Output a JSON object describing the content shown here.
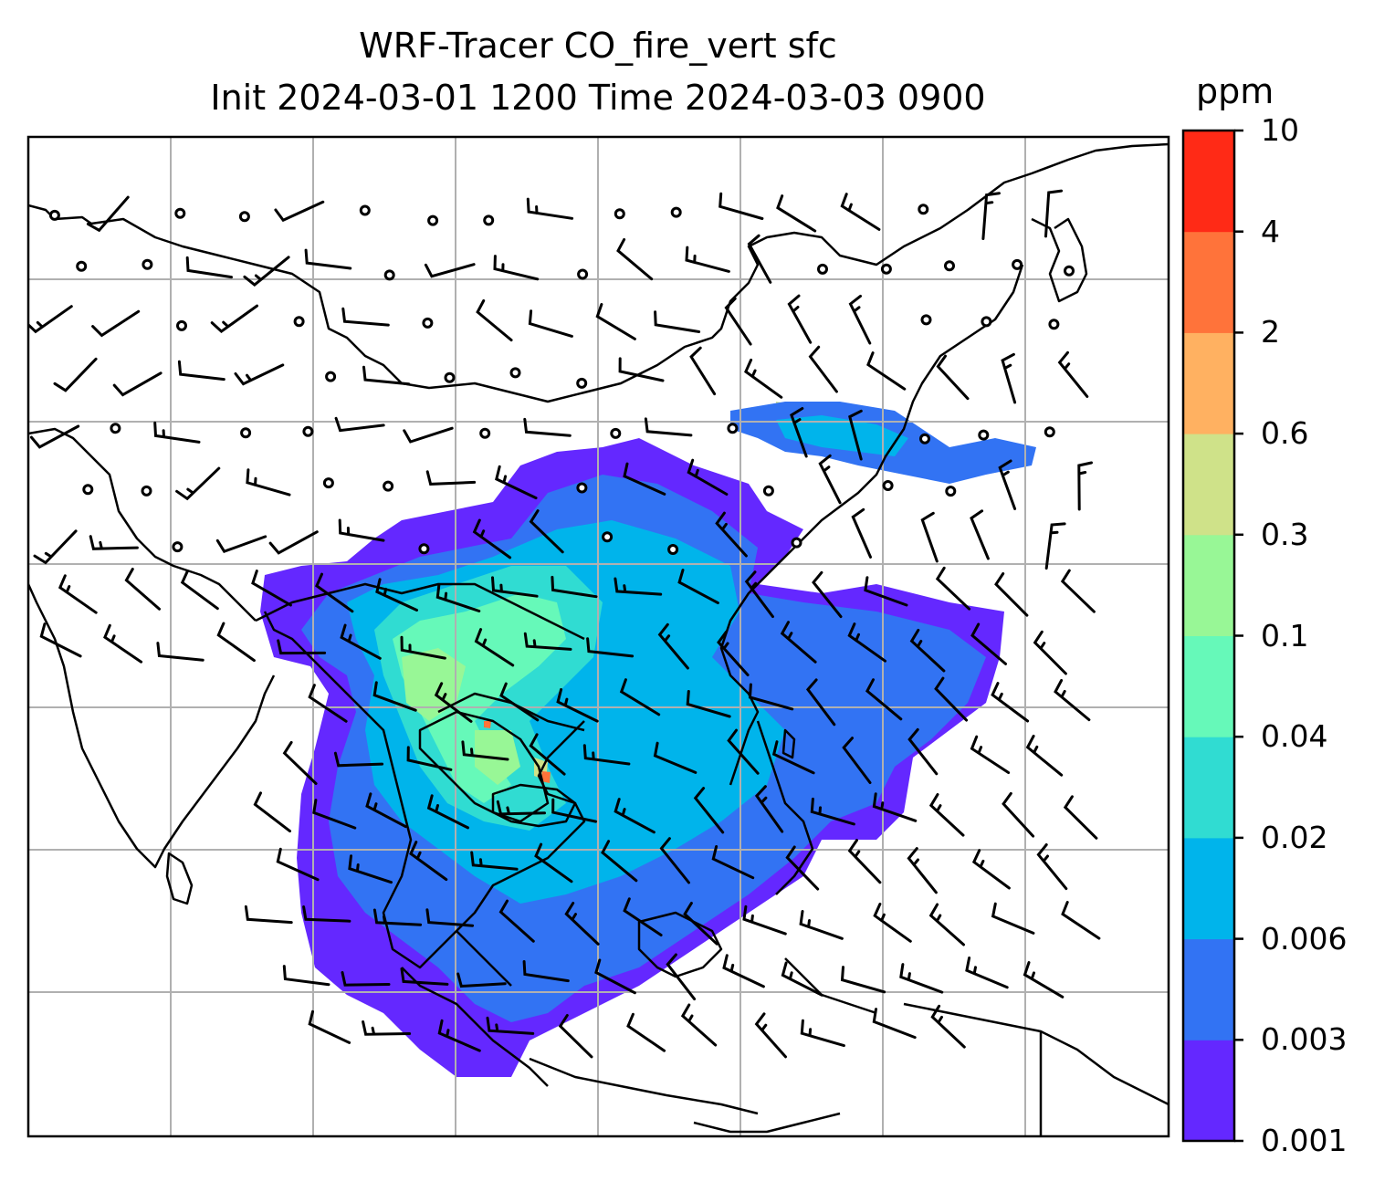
{
  "title": {
    "line1": "WRF-Tracer CO_fire_vert sfc",
    "line2": "Init 2024-03-01 1200 Time 2024-03-03 0900"
  },
  "colorbar": {
    "unit": "ppm",
    "ticks": [
      "0.001",
      "0.003",
      "0.006",
      "0.02",
      "0.04",
      "0.1",
      "0.3",
      "0.6",
      "2",
      "4",
      "10"
    ],
    "colors": [
      "#6428ff",
      "#3273f3",
      "#00b4eb",
      "#30dcd2",
      "#66f9b9",
      "#98f796",
      "#cfe289",
      "#ffb161",
      "#ff733a",
      "#ff2a16"
    ]
  },
  "map": {
    "gridlines": true,
    "grid_color": "#b0b0b0",
    "coastline_color": "#000000"
  }
}
